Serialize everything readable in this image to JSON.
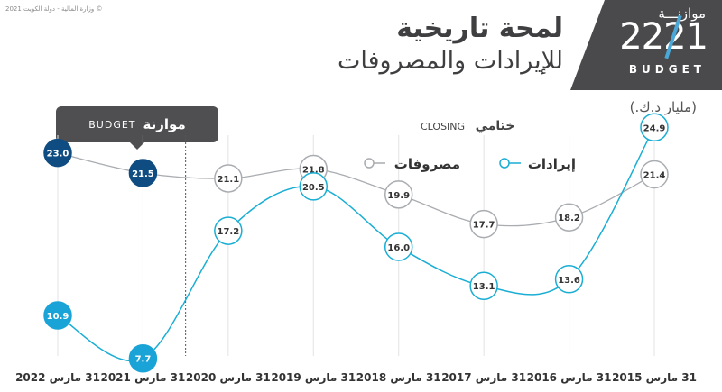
{
  "copyright": "© وزارة المالية - دولة الكويت 2021",
  "logo": {
    "word": "موازنـــة",
    "year": "2221",
    "budget": "BUDGET"
  },
  "title": {
    "main": "لمحة تاريخية",
    "sub": "للإيرادات والمصروفات"
  },
  "unit": "(مليار د.ك.)",
  "closing_label": {
    "ar": "ختامي",
    "en": "CLOSING"
  },
  "budget_label": {
    "ar": "موازنة",
    "en": "BUDGET"
  },
  "colors": {
    "revenue": "#1aaed4",
    "expenses": "#a9acb0",
    "budget_revenue": "#1aa3d6",
    "budget_expenses": "#0f4c81",
    "divider": "#555555",
    "grid": "#e3e3e3"
  },
  "chart_data": {
    "type": "line",
    "x": [
      "31 مارس 2015",
      "31 مارس 2016",
      "31 مارس 2017",
      "31 مارس 2018",
      "31 مارس 2019",
      "31 مارس 2020",
      "31 مارس 2021",
      "31 مارس 2022"
    ],
    "series": [
      {
        "name": "إيرادات",
        "values": [
          24.9,
          13.6,
          13.1,
          16.0,
          20.5,
          17.2,
          7.7,
          10.9
        ]
      },
      {
        "name": "مصروفات",
        "values": [
          21.4,
          18.2,
          17.7,
          19.9,
          21.8,
          21.1,
          21.5,
          23.0
        ]
      }
    ],
    "labels": {
      "revenue": [
        "24.9",
        "13.6",
        "13.1",
        "16.0",
        "20.5",
        "17.2",
        "7.7",
        "10.9"
      ],
      "expenses": [
        "21.4",
        "18.2",
        "17.7",
        "19.9",
        "21.8",
        "21.1",
        "21.5",
        "23.0"
      ]
    },
    "closing_points": 6,
    "budget_points": 2,
    "ylim": [
      5,
      27
    ],
    "legend": "top",
    "grid": "vertical"
  }
}
